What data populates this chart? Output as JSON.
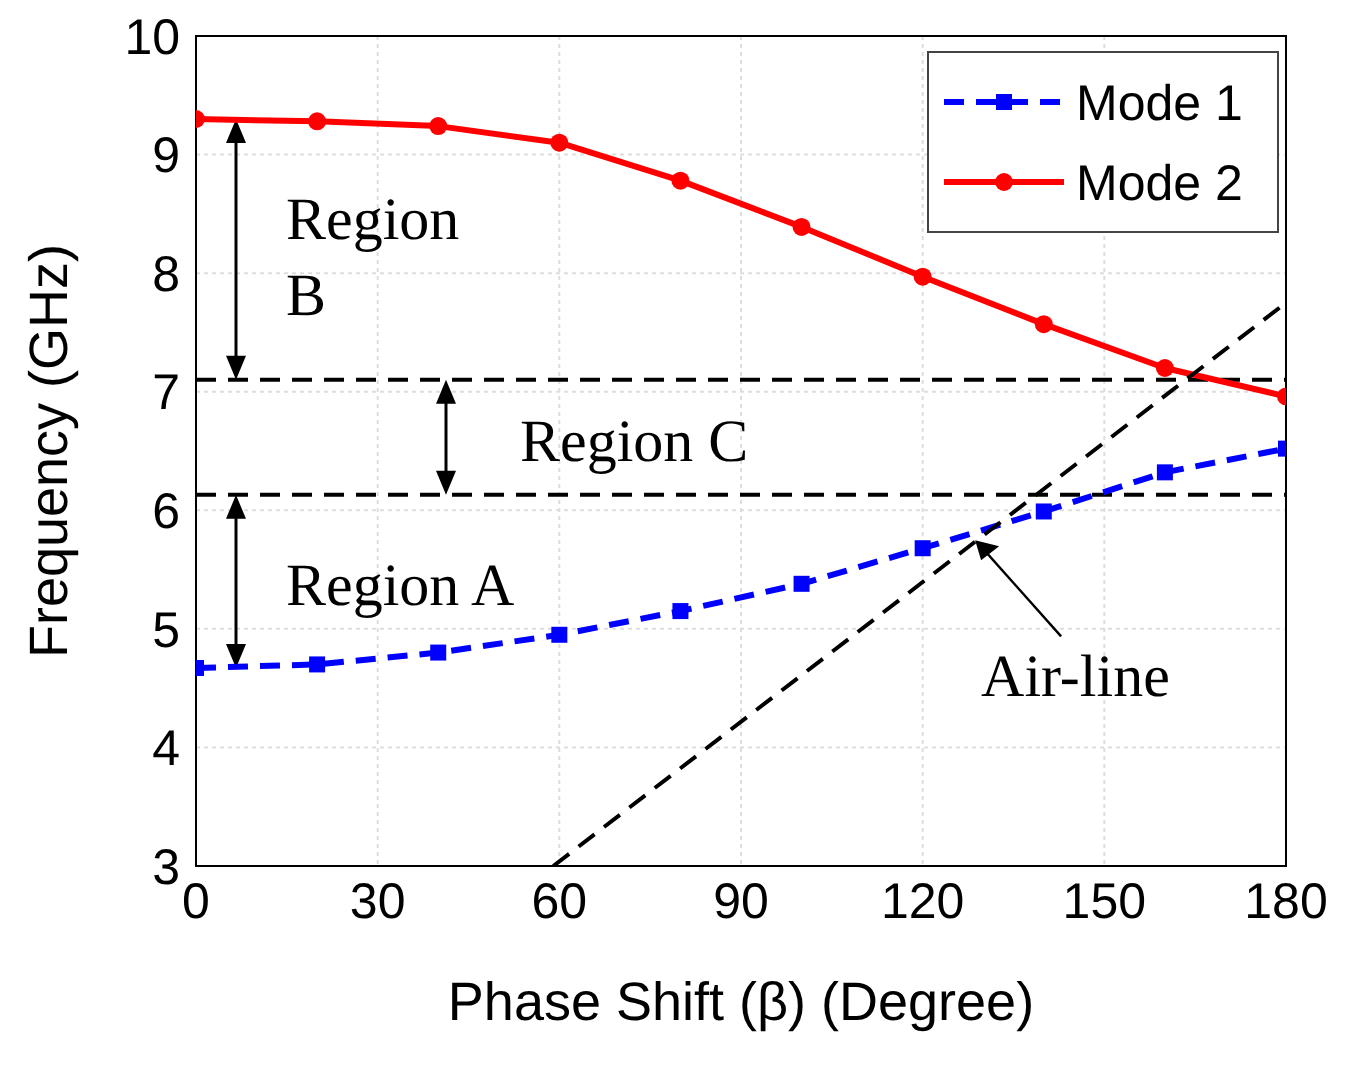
{
  "chart_data": {
    "type": "line",
    "xlabel": "Phase Shift (β) (Degree)",
    "ylabel": "Frequency (GHz)",
    "x": [
      0,
      20,
      40,
      60,
      80,
      100,
      120,
      140,
      160,
      180
    ],
    "series": [
      {
        "name": "Mode 1",
        "color": "#0000ff",
        "values": [
          4.67,
          4.7,
          4.8,
          4.95,
          5.15,
          5.38,
          5.68,
          5.99,
          6.32,
          6.52
        ],
        "marker": "square",
        "line_style": "dashed"
      },
      {
        "name": "Mode 2",
        "color": "#ff0000",
        "values": [
          9.3,
          9.28,
          9.24,
          9.1,
          8.78,
          8.39,
          7.97,
          7.57,
          7.2,
          6.96
        ],
        "marker": "circle",
        "line_style": "solid"
      },
      {
        "type": "line",
        "color": "#000000",
        "x": [
          59,
          180
        ],
        "values": [
          3,
          7.75
        ],
        "marker": "none",
        "line_style": "dashed"
      }
    ],
    "xlim": [
      0,
      180
    ],
    "xticks": [
      0,
      30,
      60,
      90,
      120,
      150,
      180
    ],
    "ylim": [
      3,
      10
    ],
    "yticks": [
      3,
      4,
      5,
      6,
      7,
      8,
      9,
      10
    ],
    "ref_lines": [
      {
        "axis": "y",
        "value": 7.1,
        "color": "#000000",
        "line_style": "dashed"
      },
      {
        "axis": "y",
        "value": 6.13,
        "color": "#000000",
        "line_style": "dashed"
      }
    ],
    "annotations": [
      "Region B",
      "Region C",
      "Region A",
      {
        "text": "Air-line",
        "x": 128,
        "y": 5.78
      }
    ],
    "grid": true,
    "legend": "top right"
  }
}
